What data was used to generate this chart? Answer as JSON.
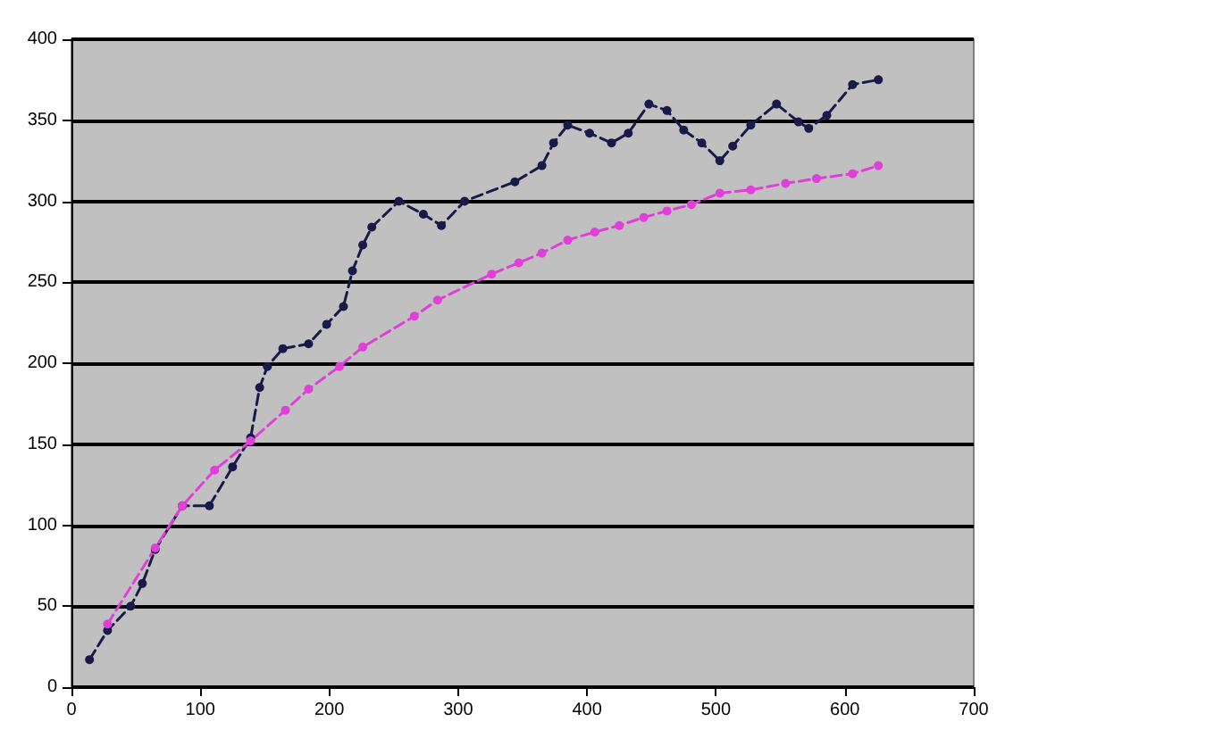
{
  "chart_data": {
    "type": "line",
    "marker": "circle",
    "line_style": "dashed",
    "grid": "y",
    "xlim": [
      0,
      700
    ],
    "xticks": [
      0,
      100,
      200,
      300,
      400,
      500,
      600,
      700
    ],
    "ylim": [
      0,
      400
    ],
    "yticks": [
      0,
      50,
      100,
      150,
      200,
      250,
      300,
      350,
      400
    ],
    "series": [
      {
        "color": "#1a1a4a",
        "x": [
          14,
          28,
          46,
          55,
          65,
          86,
          107,
          125,
          139,
          146,
          152,
          164,
          184,
          198,
          211,
          218,
          226,
          233,
          254,
          273,
          287,
          305,
          344,
          365,
          374,
          385,
          402,
          419,
          432,
          448,
          462,
          475,
          489,
          503,
          513,
          527,
          547,
          564,
          572,
          586,
          606,
          626
        ],
        "values": [
          17,
          35,
          50,
          64,
          85,
          112,
          112,
          136,
          154,
          185,
          198,
          209,
          212,
          224,
          235,
          257,
          273,
          284,
          300,
          292,
          285,
          300,
          312,
          322,
          336,
          347,
          342,
          336,
          342,
          360,
          356,
          344,
          336,
          325,
          334,
          347,
          360,
          349,
          345,
          353,
          372,
          375
        ]
      },
      {
        "color": "#e040d8",
        "x": [
          28,
          65,
          86,
          111,
          139,
          166,
          184,
          208,
          226,
          266,
          284,
          326,
          347,
          365,
          385,
          406,
          425,
          444,
          462,
          481,
          503,
          527,
          554,
          578,
          606,
          626
        ],
        "values": [
          39,
          86,
          112,
          134,
          152,
          171,
          184,
          198,
          210,
          229,
          239,
          255,
          262,
          268,
          276,
          281,
          285,
          290,
          294,
          298,
          305,
          307,
          311,
          314,
          317,
          322
        ]
      }
    ]
  }
}
